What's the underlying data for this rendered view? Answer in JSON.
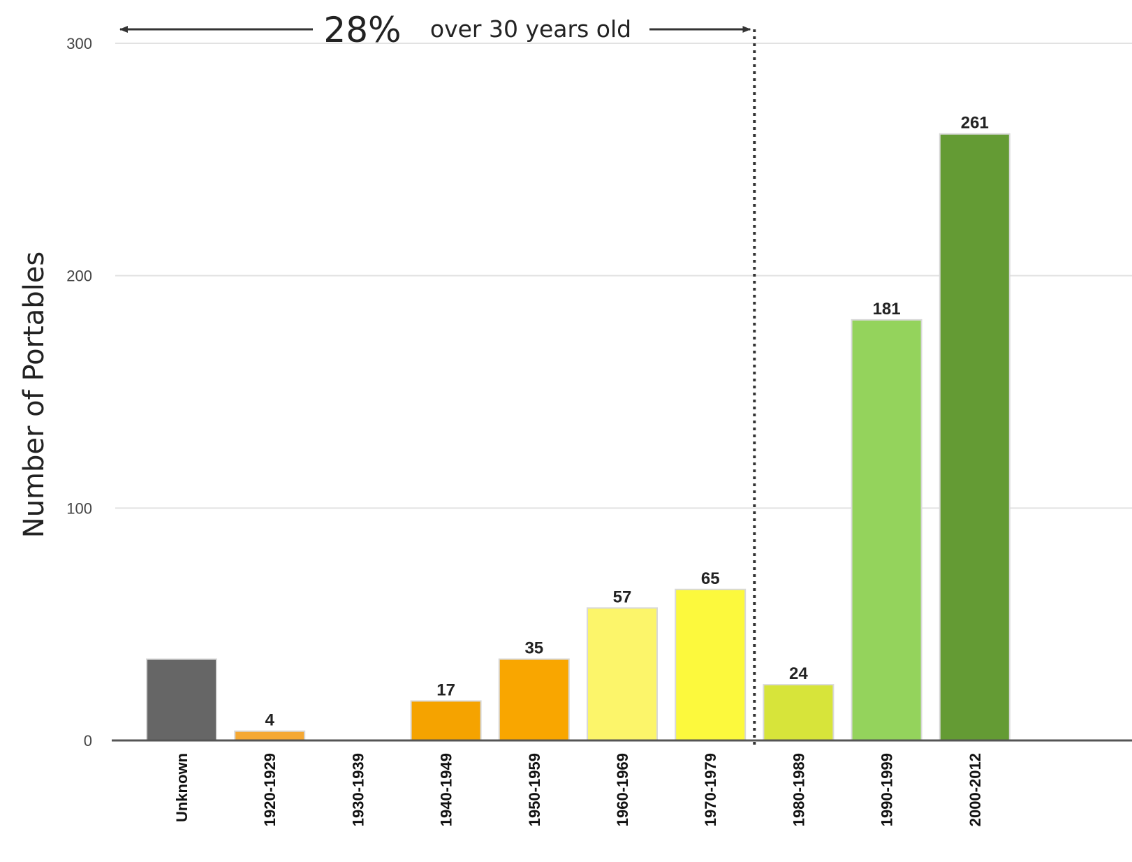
{
  "chart_data": {
    "type": "bar",
    "ylabel": "Number of Portables",
    "ylim": [
      0,
      300
    ],
    "yticks": [
      0,
      100,
      200,
      300
    ],
    "grid": true,
    "categories": [
      "Unknown",
      "1920-1929",
      "1930-1939",
      "1940-1949",
      "1950-1959",
      "1960-1969",
      "1970-1979",
      "1980-1989",
      "1990-1999",
      "2000-2012"
    ],
    "values": [
      35,
      4,
      0,
      17,
      35,
      57,
      65,
      24,
      181,
      261
    ],
    "data_labels": [
      "",
      "4",
      "",
      "17",
      "35",
      "57",
      "65",
      "24",
      "181",
      "261"
    ],
    "colors": [
      "#666666",
      "#f5a833",
      "#f5a833",
      "#f5a300",
      "#f9a600",
      "#fcf56a",
      "#fcf93d",
      "#d7e43a",
      "#94d35c",
      "#649b34"
    ],
    "annotation": {
      "percent": "28%",
      "text": "over 30 years old",
      "divider_after_category": "1970-1979"
    }
  }
}
